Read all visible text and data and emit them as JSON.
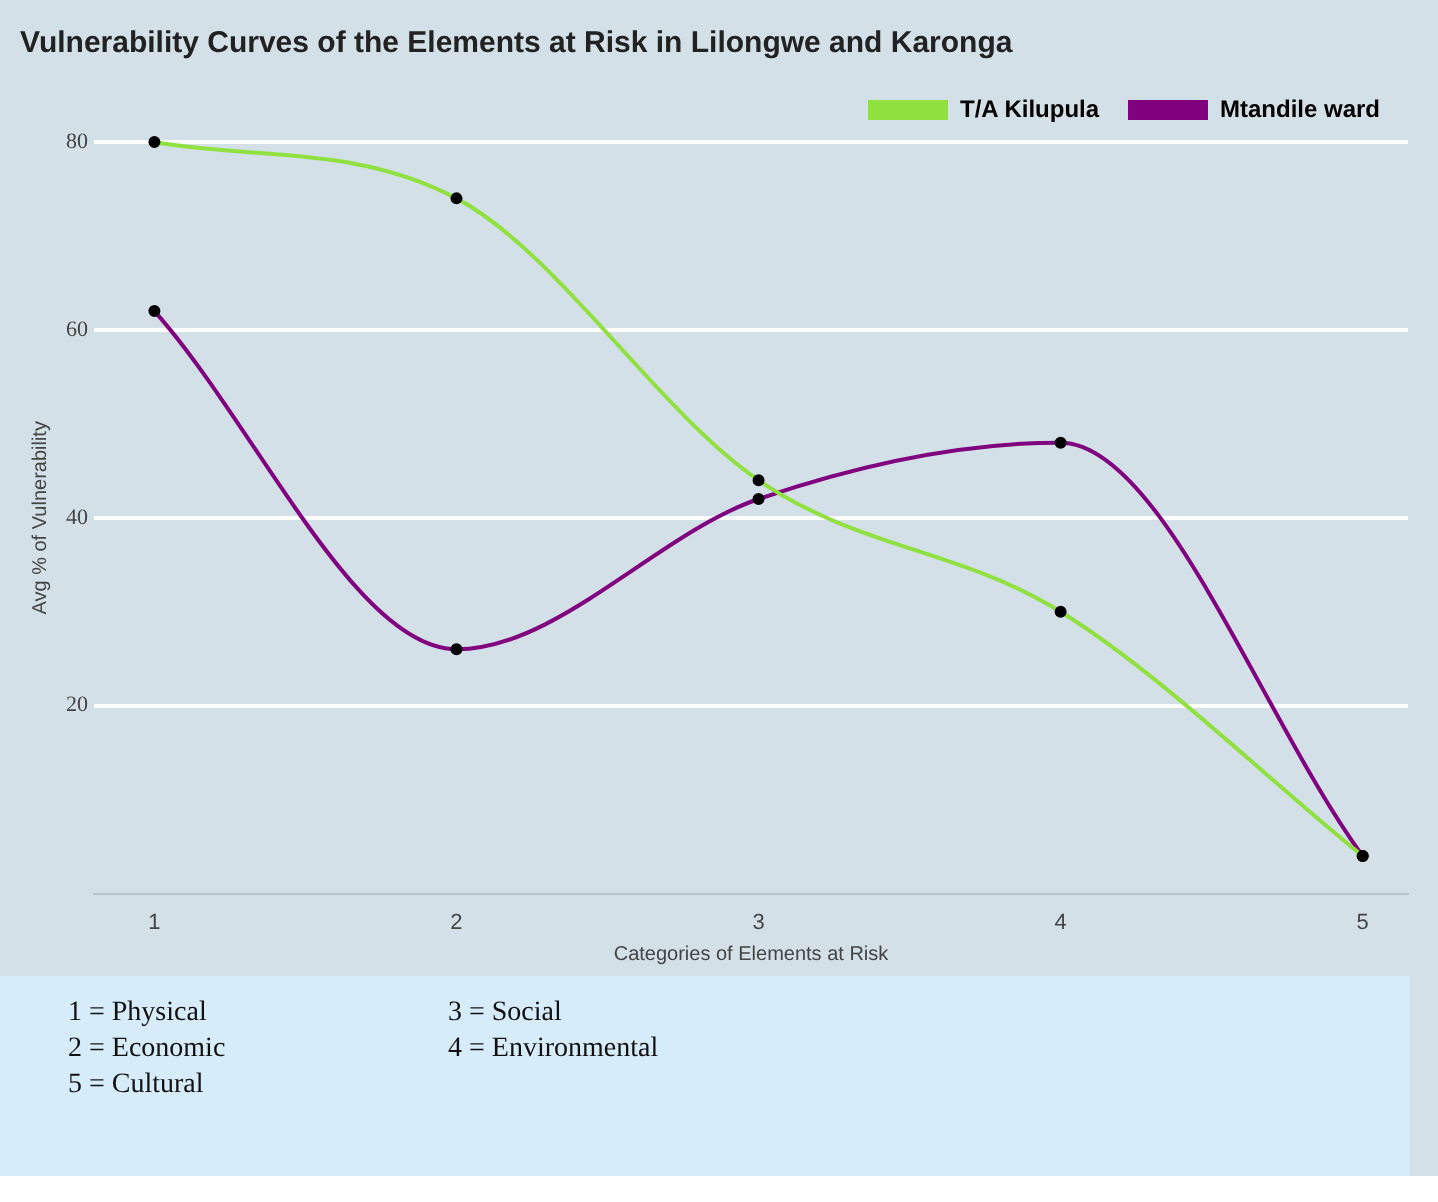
{
  "chart_data": {
    "type": "line",
    "title": "Vulnerability Curves of the Elements at Risk in Lilongwe and Karonga",
    "xlabel": "Categories of Elements at Risk",
    "ylabel": "Avg % of Vulnerability",
    "x": [
      1,
      2,
      3,
      4,
      5
    ],
    "xlim": [
      0.8,
      5.15
    ],
    "xticks": [
      1,
      2,
      3,
      4,
      5
    ],
    "ylim": [
      0,
      80
    ],
    "yticks": [
      20,
      40,
      60,
      80
    ],
    "series": [
      {
        "name": "T/A Kilupula",
        "color": "#90e040",
        "values": [
          80,
          74,
          44,
          30,
          4
        ]
      },
      {
        "name": "Mtandile ward",
        "color": "#800080",
        "values": [
          62,
          26,
          42,
          48,
          4
        ]
      }
    ],
    "grid": "y",
    "legend": "top right",
    "marker": "circle",
    "line_style": "solid",
    "annotations": [
      "1 = Physical",
      "2 = Economic",
      "5 = Cultural",
      "3 = Social",
      "4 = Environmental"
    ]
  }
}
